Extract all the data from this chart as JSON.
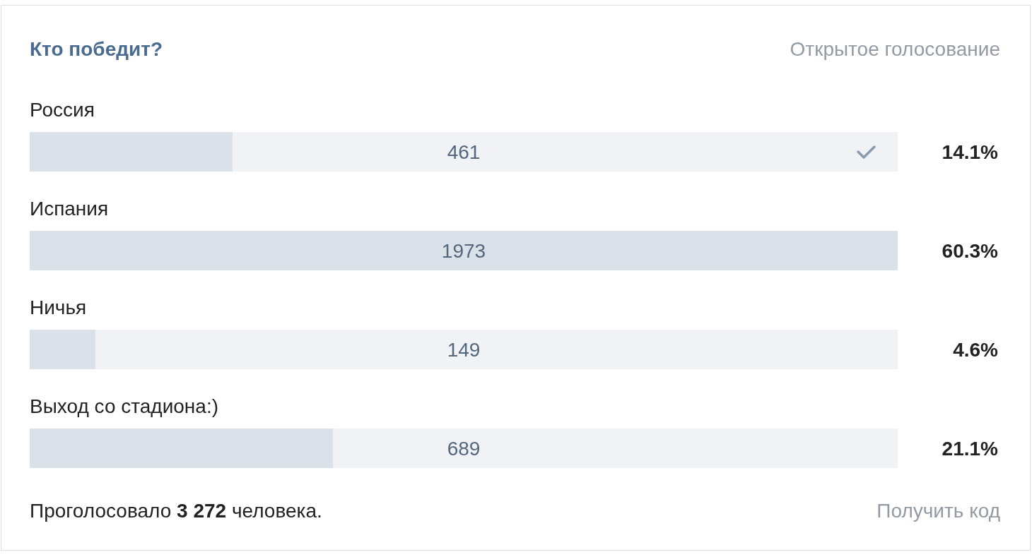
{
  "chart_data": {
    "type": "bar",
    "orientation": "horizontal",
    "title": "Кто победит?",
    "subtitle": "Открытое голосование",
    "categories": [
      "Россия",
      "Испания",
      "Ничья",
      "Выход со стадиона:)"
    ],
    "values": [
      461,
      1973,
      149,
      689
    ],
    "color": "#dae1e8",
    "data_labels": true,
    "annotations": [
      "14.1%",
      "60.3%",
      "4.6%",
      "21.1%",
      "Проголосовало 3 272 человека.",
      "Получить код"
    ]
  }
}
